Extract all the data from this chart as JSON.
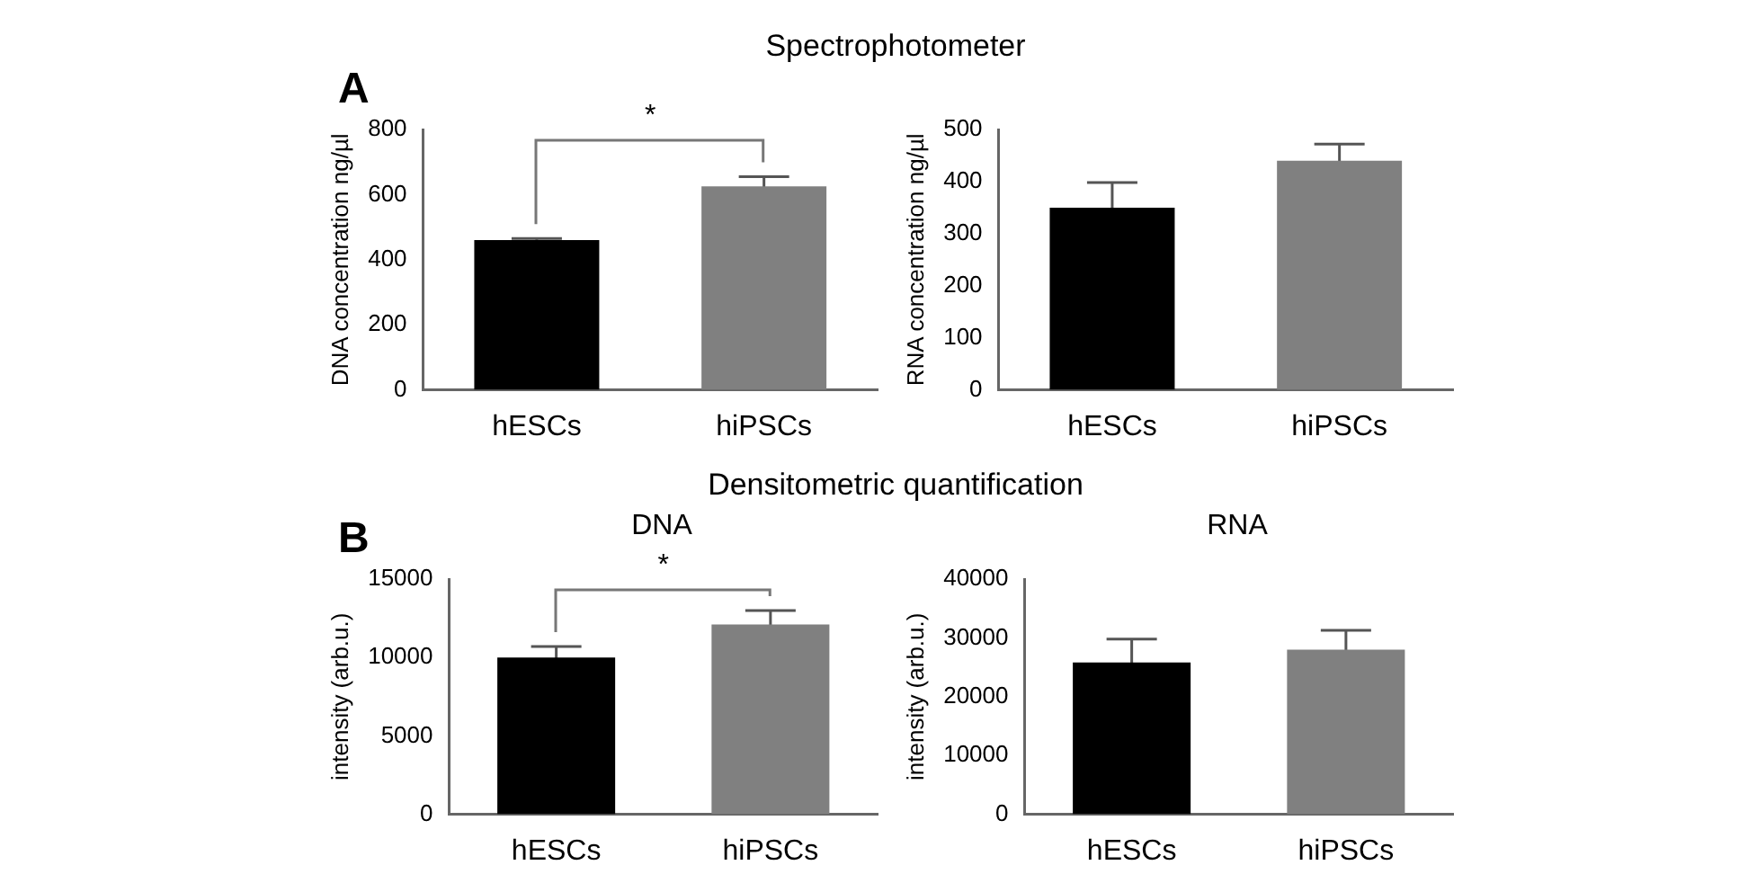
{
  "chart_data": [
    {
      "type": "bar",
      "title": "Spectrophotometer",
      "ylabel": "DNA concentration ng/µl",
      "categories": [
        "hESCs",
        "hiPSCs"
      ],
      "values": [
        460,
        625
      ],
      "errors": [
        5,
        30
      ],
      "colors": [
        "#000000",
        "#808080"
      ],
      "ylim": [
        0,
        800
      ],
      "yticks": [
        0,
        200,
        400,
        600,
        800
      ],
      "annotations": [
        "A",
        "*"
      ]
    },
    {
      "type": "bar",
      "ylabel": "RNA concentration ng/µl",
      "categories": [
        "hESCs",
        "hiPSCs"
      ],
      "values": [
        350,
        440
      ],
      "errors": [
        48,
        32
      ],
      "colors": [
        "#000000",
        "#808080"
      ],
      "ylim": [
        0,
        500
      ],
      "yticks": [
        0,
        100,
        200,
        300,
        400,
        500
      ]
    },
    {
      "type": "bar",
      "title": "Densitometric  quantification",
      "subtitle": "DNA",
      "ylabel": "intensity (arb.u.)",
      "categories": [
        "hESCs",
        "hiPSCs"
      ],
      "values": [
        10000,
        12100
      ],
      "errors": [
        700,
        900
      ],
      "colors": [
        "#000000",
        "#808080"
      ],
      "ylim": [
        0,
        15000
      ],
      "yticks": [
        0,
        5000,
        10000,
        15000
      ],
      "annotations": [
        "B",
        "*"
      ]
    },
    {
      "type": "bar",
      "subtitle": "RNA",
      "ylabel": "intensity (arb.u.)",
      "categories": [
        "hESCs",
        "hiPSCs"
      ],
      "values": [
        25800,
        28000
      ],
      "errors": [
        4000,
        3300
      ],
      "colors": [
        "#000000",
        "#808080"
      ],
      "ylim": [
        0,
        40000
      ],
      "yticks": [
        0,
        10000,
        20000,
        30000,
        40000
      ]
    }
  ]
}
